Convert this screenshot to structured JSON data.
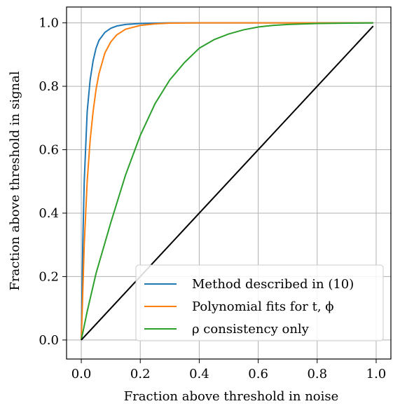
{
  "chart_data": {
    "type": "line",
    "title": "",
    "xlabel": "Fraction above threshold in noise",
    "ylabel": "Fraction above threshold in signal",
    "xlim": [
      -0.05,
      1.05
    ],
    "ylim": [
      -0.06,
      1.05
    ],
    "xticks": [
      0.0,
      0.2,
      0.4,
      0.6,
      0.8,
      1.0
    ],
    "yticks": [
      0.0,
      0.2,
      0.4,
      0.6,
      0.8,
      1.0
    ],
    "xtick_labels": [
      "0.0",
      "0.2",
      "0.4",
      "0.6",
      "0.8",
      "1.0"
    ],
    "ytick_labels": [
      "0.0",
      "0.2",
      "0.4",
      "0.6",
      "0.8",
      "1.0"
    ],
    "grid": true,
    "legend_position": "bottom-right",
    "series": [
      {
        "name": "Method described in (10)",
        "color": "#1f77b4",
        "x": [
          0.0,
          0.005,
          0.01,
          0.02,
          0.03,
          0.04,
          0.05,
          0.06,
          0.08,
          0.1,
          0.12,
          0.15,
          0.2,
          0.25,
          0.3,
          0.4,
          0.6,
          0.8,
          0.99
        ],
        "y": [
          0.0,
          0.3,
          0.5,
          0.72,
          0.82,
          0.88,
          0.92,
          0.945,
          0.97,
          0.983,
          0.99,
          0.995,
          0.998,
          0.999,
          1.0,
          1.0,
          1.0,
          1.0,
          1.0
        ]
      },
      {
        "name": "Polynomial fits for t, ϕ",
        "color": "#ff7f0e",
        "x": [
          0.0,
          0.01,
          0.02,
          0.03,
          0.04,
          0.05,
          0.06,
          0.08,
          0.1,
          0.12,
          0.15,
          0.2,
          0.25,
          0.3,
          0.4,
          0.6,
          0.8,
          0.99
        ],
        "y": [
          0.0,
          0.3,
          0.5,
          0.63,
          0.72,
          0.79,
          0.84,
          0.905,
          0.94,
          0.962,
          0.98,
          0.992,
          0.997,
          0.999,
          1.0,
          1.0,
          1.0,
          1.0
        ]
      },
      {
        "name": "ρ consistency only",
        "color": "#2ca02c",
        "x": [
          0.0,
          0.02,
          0.05,
          0.1,
          0.15,
          0.2,
          0.25,
          0.3,
          0.35,
          0.4,
          0.45,
          0.5,
          0.55,
          0.6,
          0.65,
          0.7,
          0.8,
          0.9,
          0.99
        ],
        "y": [
          0.0,
          0.09,
          0.21,
          0.37,
          0.52,
          0.645,
          0.745,
          0.82,
          0.875,
          0.92,
          0.947,
          0.965,
          0.978,
          0.987,
          0.992,
          0.995,
          0.998,
          0.999,
          1.0
        ]
      },
      {
        "name": "",
        "color": "#000000",
        "x": [
          0.0,
          0.99
        ],
        "y": [
          0.0,
          0.99
        ]
      }
    ]
  }
}
